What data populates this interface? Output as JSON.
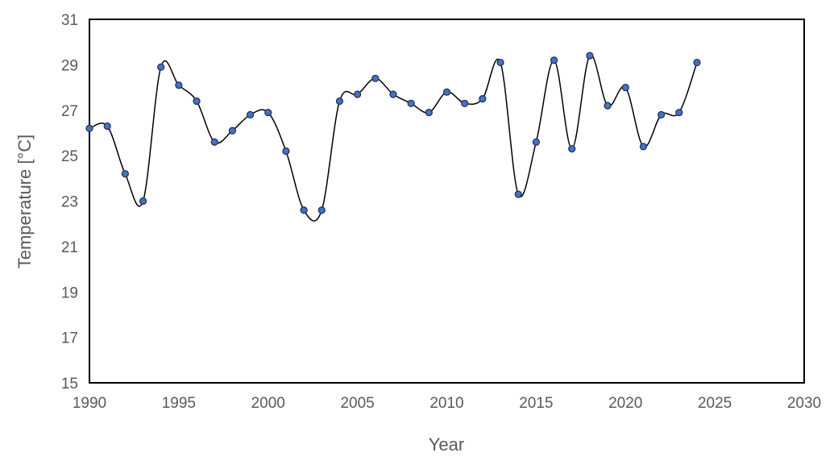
{
  "chart_data": {
    "type": "scatter",
    "title": "",
    "xlabel": "Year",
    "ylabel": "Temperature [°C]",
    "xlim": [
      1990,
      2030
    ],
    "ylim": [
      15,
      31
    ],
    "xticks": [
      1990,
      1995,
      2000,
      2005,
      2010,
      2015,
      2020,
      2025,
      2030
    ],
    "yticks": [
      15,
      17,
      19,
      21,
      23,
      25,
      27,
      29,
      31
    ],
    "grid": false,
    "smoothed_line": true,
    "colors": {
      "marker_fill": "#4472c4",
      "marker_stroke": "#1f2d4d",
      "line": "#000000",
      "frame": "#000000",
      "text": "#595959"
    },
    "series": [
      {
        "x": [
          1990,
          1991,
          1992,
          1993,
          1994,
          1995,
          1996,
          1997,
          1998,
          1999,
          2000,
          2001,
          2002,
          2003,
          2004,
          2005,
          2006,
          2007,
          2008,
          2009,
          2010,
          2011,
          2012,
          2013,
          2014,
          2015,
          2016,
          2017,
          2018,
          2019,
          2020,
          2021,
          2022,
          2023,
          2024
        ],
        "y": [
          26.2,
          26.3,
          24.2,
          23.0,
          28.9,
          28.1,
          27.4,
          25.6,
          26.1,
          26.8,
          26.9,
          25.2,
          22.6,
          22.6,
          27.4,
          27.7,
          28.4,
          27.7,
          27.3,
          26.9,
          27.8,
          27.3,
          27.5,
          29.1,
          23.3,
          25.6,
          29.2,
          25.3,
          29.4,
          27.2,
          28.0,
          25.4,
          26.8,
          26.9,
          29.1
        ]
      }
    ]
  }
}
